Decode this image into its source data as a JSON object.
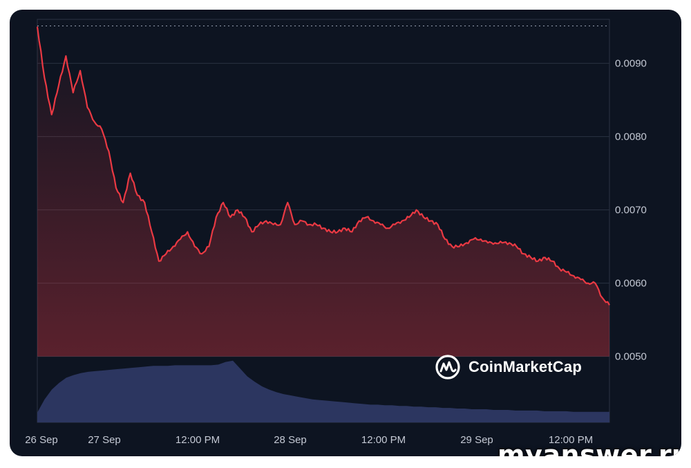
{
  "chart_data": {
    "type": "line",
    "title": "",
    "xlabel": "",
    "ylabel": "",
    "y_ticks": [
      "0.0050",
      "0.0060",
      "0.0070",
      "0.0080",
      "0.0090"
    ],
    "x_ticks": [
      "26 Sep",
      "27 Sep",
      "12:00 PM",
      "28 Sep",
      "12:00 PM",
      "29 Sep",
      "12:00 PM"
    ],
    "ylim": [
      0.0041,
      0.0096
    ],
    "reference_line": 0.00951,
    "grid": true,
    "series": [
      {
        "values": [
          0.0095,
          0.0088,
          0.0083,
          0.0087,
          0.0091,
          0.0086,
          0.0089,
          0.0084,
          0.0082,
          0.0081,
          0.0078,
          0.0073,
          0.0071,
          0.0075,
          0.0072,
          0.0071,
          0.0067,
          0.0063,
          0.0064,
          0.0065,
          0.0066,
          0.0067,
          0.0065,
          0.0064,
          0.0065,
          0.0069,
          0.0071,
          0.0069,
          0.007,
          0.0069,
          0.0067,
          0.0068,
          0.00685,
          0.0068,
          0.0068,
          0.0071,
          0.0068,
          0.00685,
          0.0068,
          0.0068,
          0.00675,
          0.0067,
          0.0067,
          0.00675,
          0.0067,
          0.00685,
          0.0069,
          0.00685,
          0.0068,
          0.00675,
          0.0068,
          0.00685,
          0.0069,
          0.007,
          0.0069,
          0.00685,
          0.0068,
          0.0066,
          0.0065,
          0.0065,
          0.00655,
          0.0066,
          0.0066,
          0.00655,
          0.00655,
          0.00655,
          0.00655,
          0.0065,
          0.0064,
          0.00635,
          0.0063,
          0.00635,
          0.0063,
          0.0062,
          0.00615,
          0.0061,
          0.00605,
          0.006,
          0.006,
          0.0058,
          0.0057
        ]
      }
    ],
    "volume_area": [
      0.15,
      0.35,
      0.5,
      0.6,
      0.68,
      0.72,
      0.75,
      0.77,
      0.78,
      0.79,
      0.8,
      0.81,
      0.82,
      0.83,
      0.84,
      0.85,
      0.86,
      0.86,
      0.86,
      0.87,
      0.87,
      0.87,
      0.87,
      0.87,
      0.87,
      0.88,
      0.92,
      0.94,
      0.82,
      0.7,
      0.62,
      0.55,
      0.5,
      0.46,
      0.43,
      0.41,
      0.39,
      0.37,
      0.35,
      0.34,
      0.33,
      0.32,
      0.31,
      0.3,
      0.29,
      0.28,
      0.27,
      0.27,
      0.26,
      0.26,
      0.25,
      0.25,
      0.24,
      0.24,
      0.23,
      0.23,
      0.22,
      0.22,
      0.21,
      0.21,
      0.2,
      0.2,
      0.2,
      0.19,
      0.19,
      0.19,
      0.18,
      0.18,
      0.18,
      0.18,
      0.17,
      0.17,
      0.17,
      0.17,
      0.16,
      0.16,
      0.16,
      0.16,
      0.16,
      0.16
    ],
    "colors": {
      "line": "#ea3943",
      "grid": "#2a3242",
      "volume": "#2c3660",
      "background": "#0d1421"
    }
  },
  "brand": {
    "name": "CoinMarketCap",
    "icon": "coinmarketcap-logo-icon"
  },
  "watermark": "myanswer.ru"
}
